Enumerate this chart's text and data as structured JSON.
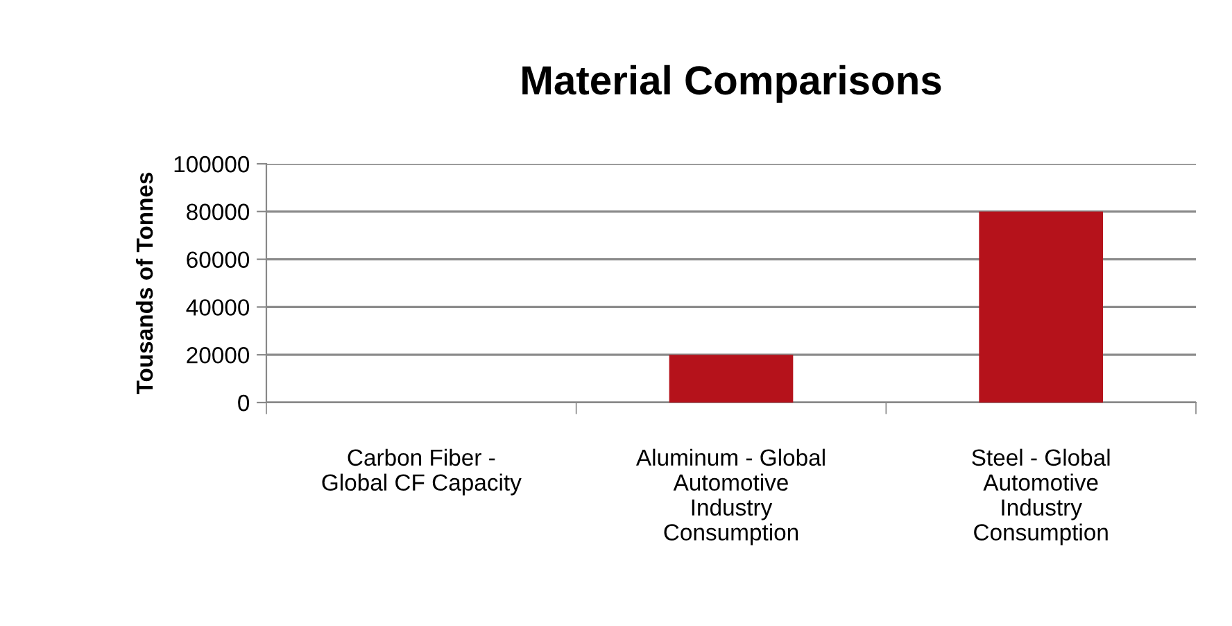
{
  "chart_data": {
    "type": "bar",
    "title": "Material Comparisons",
    "ylabel": "Tousands of Tonnes",
    "categories": [
      "Carbon Fiber - Global CF Capacity",
      "Aluminum - Global Automotive Industry Consumption",
      "Steel - Global Automotive Industry Consumption"
    ],
    "values": [
      0,
      20000,
      80000
    ],
    "color": "#b5121b",
    "ylim": [
      0,
      100000
    ],
    "yticks": [
      0,
      20000,
      40000,
      60000,
      80000,
      100000
    ],
    "grid": "y",
    "legend": false
  }
}
